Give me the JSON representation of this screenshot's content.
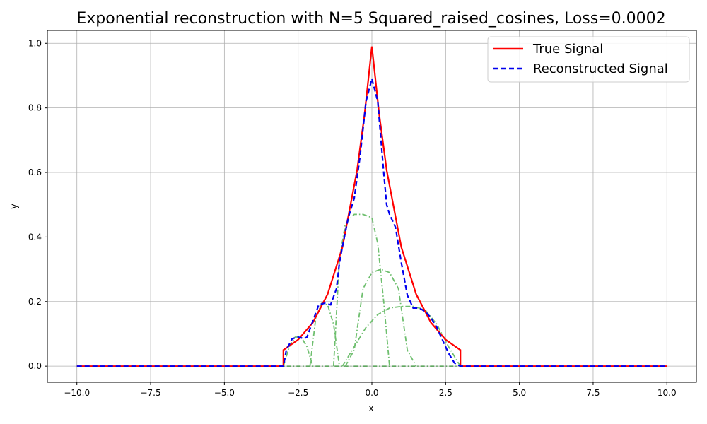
{
  "chart_data": {
    "type": "line",
    "title": "Exponential reconstruction with N=5 Squared_raised_cosines, Loss=0.0002",
    "xlabel": "x",
    "ylabel": "y",
    "xlim": [
      -11,
      11
    ],
    "ylim": [
      -0.05,
      1.04
    ],
    "xticks": [
      -10.0,
      -7.5,
      -5.0,
      -2.5,
      0.0,
      2.5,
      5.0,
      7.5,
      10.0
    ],
    "xtick_labels": [
      "−10.0",
      "−7.5",
      "−5.0",
      "−2.5",
      "0.0",
      "2.5",
      "5.0",
      "7.5",
      "10.0"
    ],
    "yticks": [
      0.0,
      0.2,
      0.4,
      0.6,
      0.8,
      1.0
    ],
    "ytick_labels": [
      "0.0",
      "0.2",
      "0.4",
      "0.6",
      "0.8",
      "1.0"
    ],
    "grid": true,
    "legend_position": "top-right",
    "legend": [
      "True Signal",
      "Reconstructed Signal"
    ],
    "colors": {
      "true_signal": "#ff0000",
      "reconstructed": "#0000ee",
      "basis": "#6fbf6f",
      "grid": "#b0b0b0"
    },
    "series": [
      {
        "name": "True Signal",
        "style": "solid",
        "x": [
          -10,
          -3.0,
          -3.0,
          -2.5,
          -2.0,
          -1.5,
          -1.0,
          -0.5,
          -0.25,
          0.0,
          0.25,
          0.5,
          1.0,
          1.5,
          2.0,
          2.5,
          3.0,
          3.0,
          10
        ],
        "y": [
          0,
          0,
          0.05,
          0.082,
          0.135,
          0.223,
          0.368,
          0.607,
          0.779,
          0.99,
          0.779,
          0.607,
          0.368,
          0.223,
          0.135,
          0.082,
          0.05,
          0,
          0
        ]
      },
      {
        "name": "Reconstructed Signal",
        "style": "dashed",
        "x": [
          -10,
          -3.0,
          -2.9,
          -2.7,
          -2.5,
          -2.3,
          -2.2,
          -2.0,
          -1.8,
          -1.6,
          -1.4,
          -1.2,
          -1.1,
          -1.0,
          -0.8,
          -0.6,
          -0.4,
          -0.2,
          0.0,
          0.2,
          0.4,
          0.5,
          0.6,
          0.8,
          1.0,
          1.2,
          1.4,
          1.6,
          1.8,
          2.0,
          2.2,
          2.4,
          2.6,
          2.8,
          3.0,
          10
        ],
        "y": [
          0,
          0,
          0.05,
          0.085,
          0.09,
          0.085,
          0.09,
          0.14,
          0.19,
          0.195,
          0.19,
          0.24,
          0.32,
          0.37,
          0.46,
          0.52,
          0.65,
          0.82,
          0.89,
          0.82,
          0.6,
          0.5,
          0.47,
          0.43,
          0.32,
          0.22,
          0.18,
          0.18,
          0.17,
          0.15,
          0.12,
          0.08,
          0.04,
          0.01,
          0,
          0
        ]
      }
    ],
    "basis_functions": [
      {
        "x": [
          -3.0,
          -2.8,
          -2.6,
          -2.4,
          -2.2,
          -2.0,
          -10,
          10
        ],
        "y": [
          0,
          0.06,
          0.09,
          0.09,
          0.06,
          0,
          0,
          0
        ],
        "segments": [
          [
            -3.0,
            -2.0
          ]
        ]
      },
      {
        "x": [
          -2.1,
          -1.9,
          -1.7,
          -1.5,
          -1.3,
          -1.1
        ],
        "y": [
          0,
          0.15,
          0.195,
          0.19,
          0.13,
          0
        ]
      },
      {
        "x": [
          -1.3,
          -1.1,
          -0.9,
          -0.6,
          -0.3,
          0.0,
          0.2,
          0.4,
          0.6
        ],
        "y": [
          0,
          0.33,
          0.44,
          0.47,
          0.47,
          0.46,
          0.38,
          0.2,
          0
        ]
      },
      {
        "x": [
          -0.9,
          -0.6,
          -0.3,
          0.0,
          0.3,
          0.6,
          0.9,
          1.2,
          1.5
        ],
        "y": [
          0,
          0.05,
          0.24,
          0.29,
          0.3,
          0.29,
          0.24,
          0.05,
          0
        ]
      },
      {
        "x": [
          -1.0,
          -0.6,
          -0.2,
          0.2,
          0.6,
          1.0,
          1.4,
          1.8,
          2.2,
          2.6,
          3.0
        ],
        "y": [
          0,
          0.06,
          0.12,
          0.16,
          0.18,
          0.185,
          0.185,
          0.175,
          0.13,
          0.06,
          0
        ]
      }
    ]
  }
}
